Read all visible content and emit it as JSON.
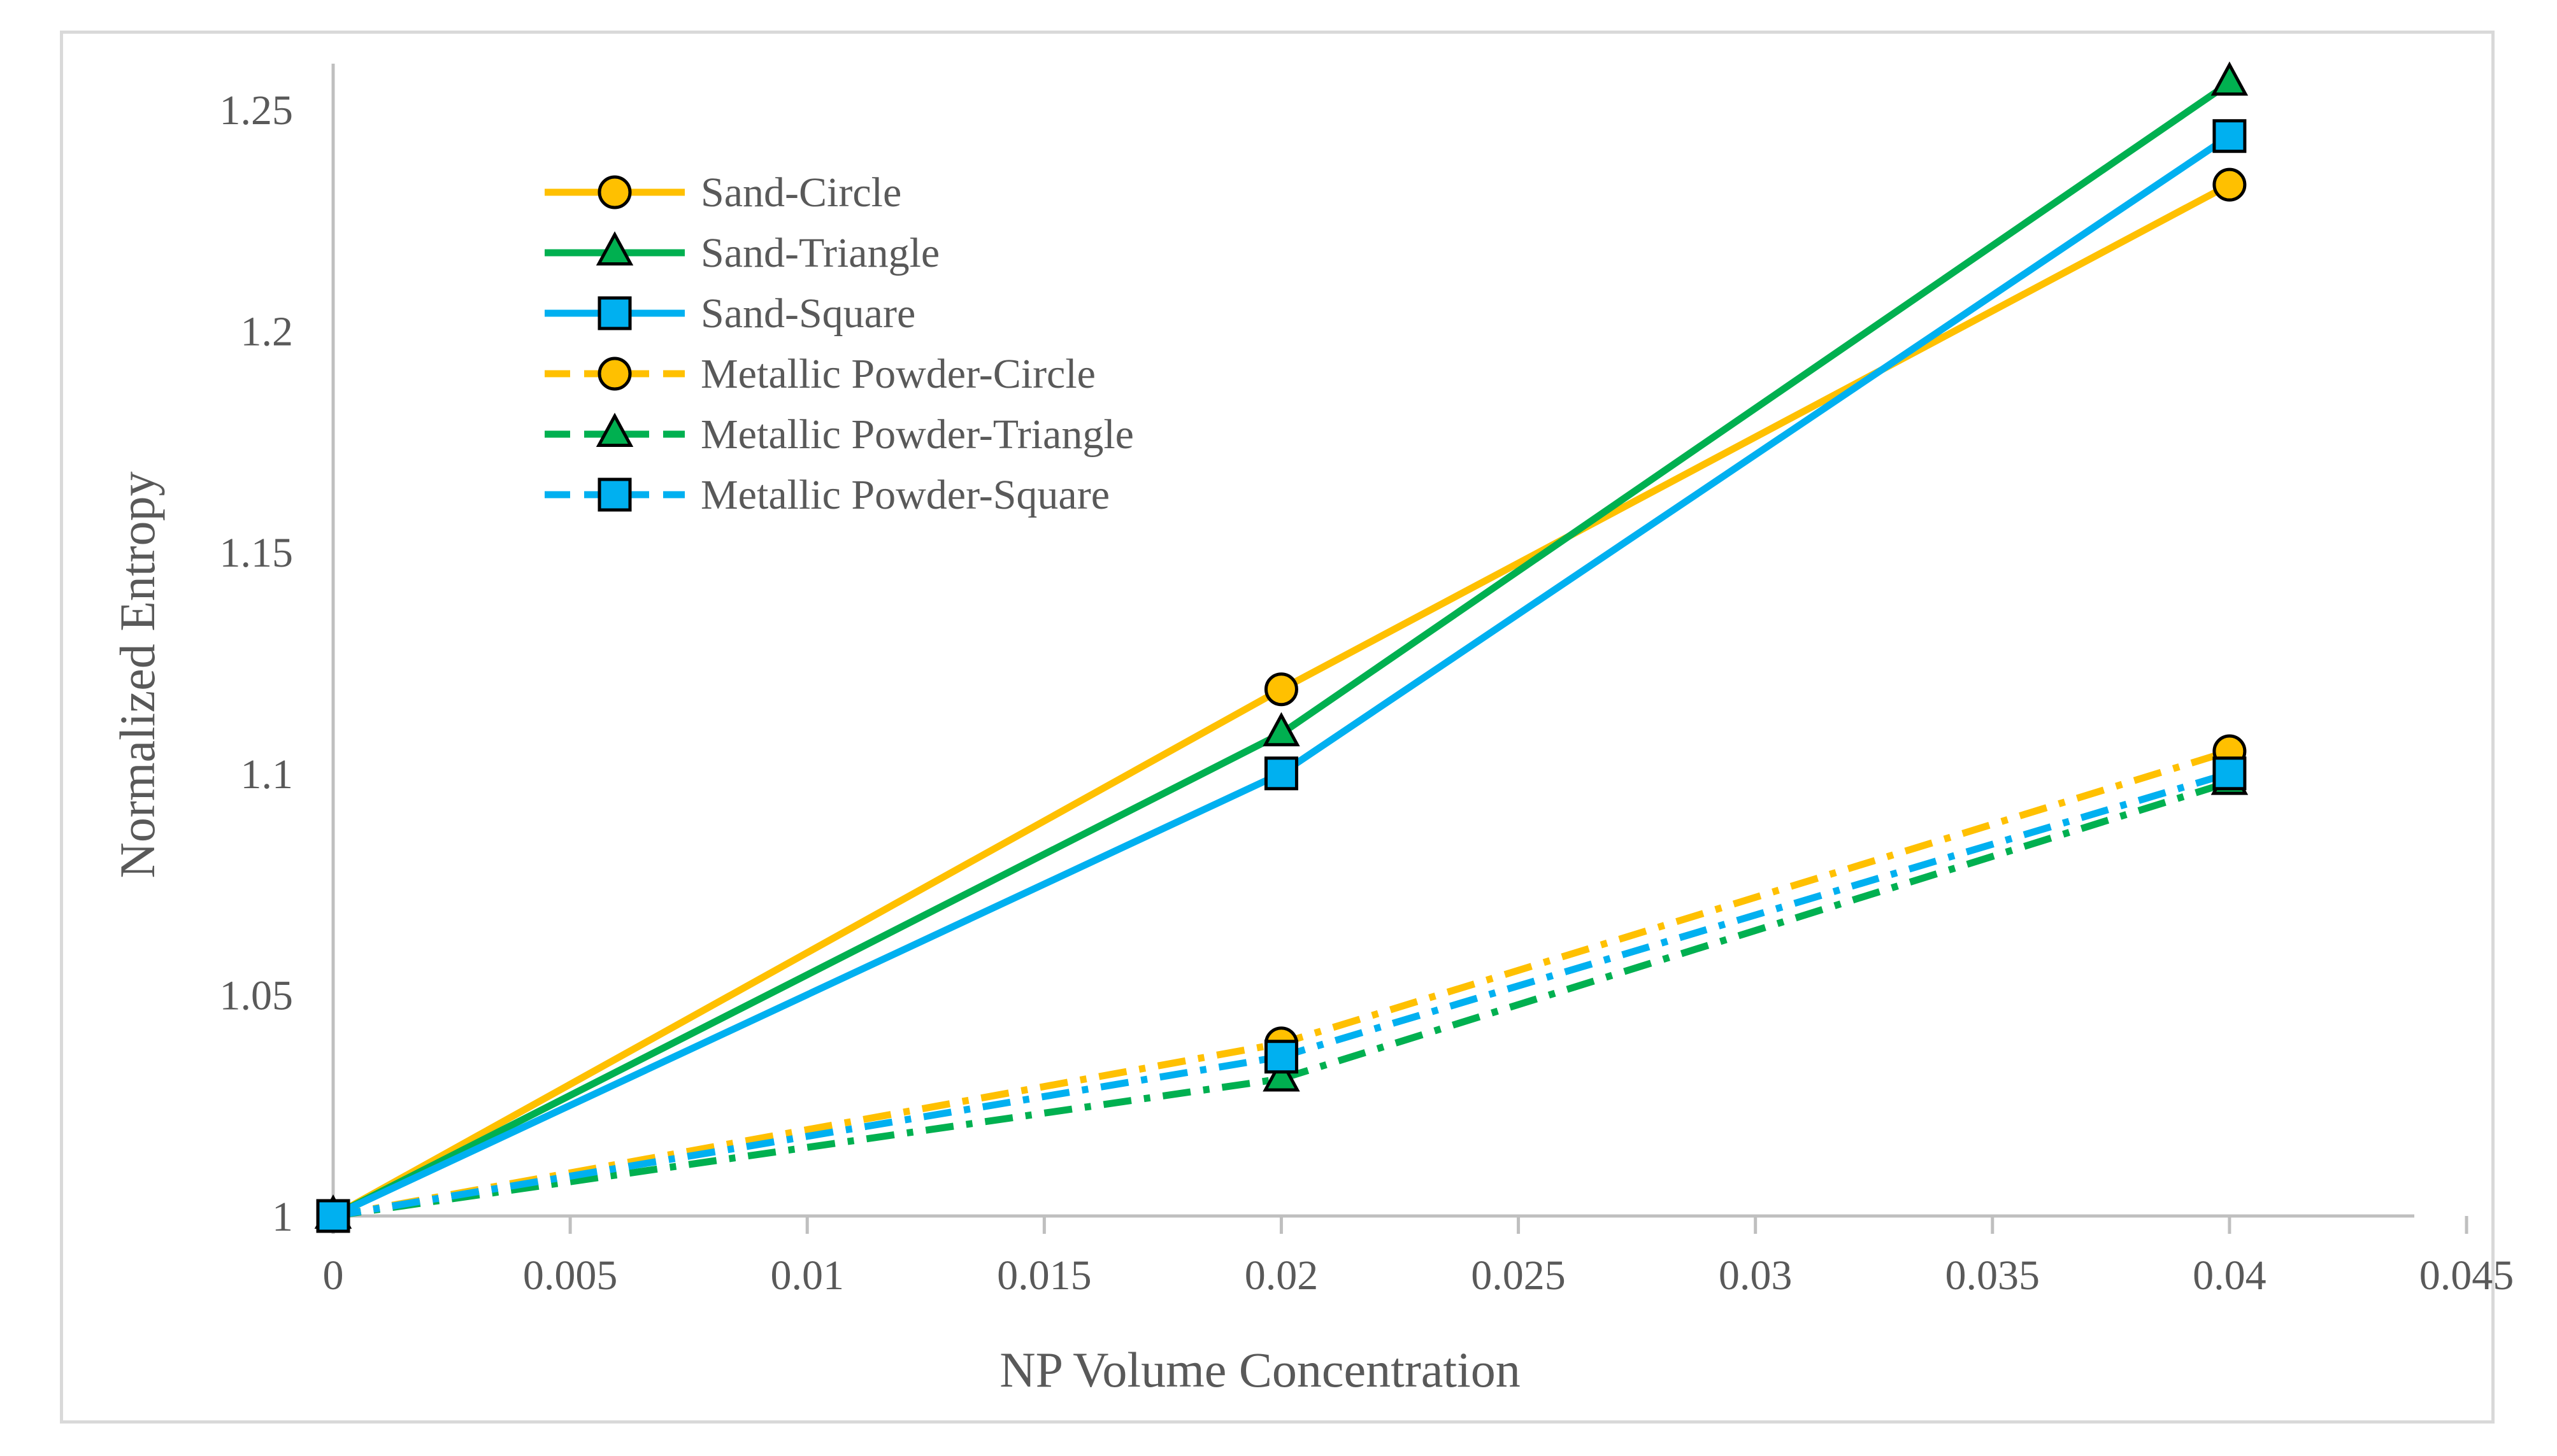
{
  "chart_data": {
    "type": "line",
    "title": "",
    "xlabel": "NP Volume Concentration",
    "ylabel": "Normalized Entropy",
    "xlim": [
      0,
      0.045
    ],
    "ylim": [
      1,
      1.25
    ],
    "x_ticks": [
      "0",
      "0.005",
      "0.01",
      "0.015",
      "0.02",
      "0.025",
      "0.03",
      "0.035",
      "0.04",
      "0.045"
    ],
    "y_ticks": [
      "1",
      "1.05",
      "1.1",
      "1.15",
      "1.2",
      "1.25"
    ],
    "legend_position": "top-left",
    "grid": false,
    "series": [
      {
        "name": "Sand-Circle",
        "x": [
          0,
          0.02,
          0.04
        ],
        "values": [
          1,
          1.119,
          1.233
        ],
        "color": "#ffc000",
        "marker": "circle",
        "line": "solid"
      },
      {
        "name": "Sand-Triangle",
        "x": [
          0,
          0.02,
          0.04
        ],
        "values": [
          1,
          1.109,
          1.256
        ],
        "color": "#00b050",
        "marker": "triangle",
        "line": "solid"
      },
      {
        "name": "Sand-Square",
        "x": [
          0,
          0.02,
          0.04
        ],
        "values": [
          1,
          1.1,
          1.244
        ],
        "color": "#00b0f0",
        "marker": "square",
        "line": "solid"
      },
      {
        "name": "Metallic Powder-Circle",
        "x": [
          0,
          0.02,
          0.04
        ],
        "values": [
          1,
          1.039,
          1.105
        ],
        "color": "#ffc000",
        "marker": "circle",
        "line": "dashdot"
      },
      {
        "name": "Metallic Powder-Triangle",
        "x": [
          0,
          0.02,
          0.04
        ],
        "values": [
          1,
          1.031,
          1.098
        ],
        "color": "#00b050",
        "marker": "triangle",
        "line": "dashdot"
      },
      {
        "name": "Metallic Powder-Square",
        "x": [
          0,
          0.02,
          0.04
        ],
        "values": [
          1,
          1.036,
          1.1
        ],
        "color": "#00b0f0",
        "marker": "square",
        "line": "dashdot"
      }
    ]
  }
}
